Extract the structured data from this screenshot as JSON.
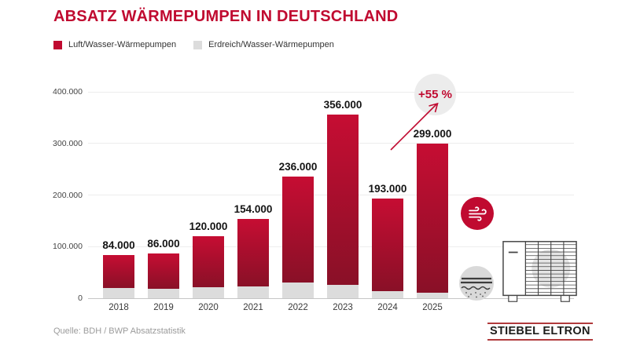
{
  "header": {
    "title": "ABSATZ WÄRMEPUMPEN IN DEUTSCHLAND"
  },
  "legend": {
    "items": [
      {
        "label": "Luft/Wasser-Wärmepumpen",
        "color": "#c00a30"
      },
      {
        "label": "Erdreich/Wasser-Wärmepumpen",
        "color": "#dcdcdc"
      }
    ]
  },
  "chart_data": {
    "type": "bar",
    "stacked": true,
    "title": "Absatz Wärmepumpen in Deutschland",
    "categories": [
      "2018",
      "2019",
      "2020",
      "2021",
      "2022",
      "2023",
      "2024",
      "2025"
    ],
    "series": [
      {
        "name": "Luft/Wasser-Wärmepumpen",
        "color_top": "#c60d33",
        "color_bottom": "#891027",
        "values": [
          64000,
          68000,
          99000,
          131000,
          206000,
          330000,
          179000,
          288000
        ]
      },
      {
        "name": "Erdreich/Wasser-Wärmepumpen",
        "color": "#dcdcdc",
        "values": [
          20000,
          18000,
          21000,
          23000,
          30000,
          26000,
          14000,
          11000
        ]
      }
    ],
    "totals": [
      84000,
      86000,
      120000,
      154000,
      236000,
      356000,
      193000,
      299000
    ],
    "total_labels": [
      "84.000",
      "86.000",
      "120.000",
      "154.000",
      "236.000",
      "356.000",
      "193.000",
      "299.000"
    ],
    "y_ticks": [
      {
        "value": 0,
        "label": "0"
      },
      {
        "value": 100000,
        "label": "100.000"
      },
      {
        "value": 200000,
        "label": "200.000"
      },
      {
        "value": 300000,
        "label": "300.000"
      },
      {
        "value": 400000,
        "label": "400.000"
      }
    ],
    "ylim": [
      0,
      400000
    ],
    "grid": true,
    "legend_position": "top",
    "annotation": {
      "text": "+55 %"
    }
  },
  "icons": {
    "wind": "wind-icon",
    "ground": "ground-layers-icon",
    "heat_pump": "heat-pump-illustration"
  },
  "footer": {
    "source": "Quelle: BDH / BWP Absatzstatistik",
    "logo_text": "STIEBEL ELTRON"
  },
  "colors": {
    "brand_red": "#c00a30",
    "bar_gradient_top": "#c60d33",
    "bar_gradient_bottom": "#891027",
    "gray_bar": "#dcdcdc",
    "grid_line": "#ededed",
    "axis_line": "#c6c6c6",
    "value_label": "#141414",
    "muted_text": "#9b9b9b",
    "logo_line": "#b13a3c"
  }
}
